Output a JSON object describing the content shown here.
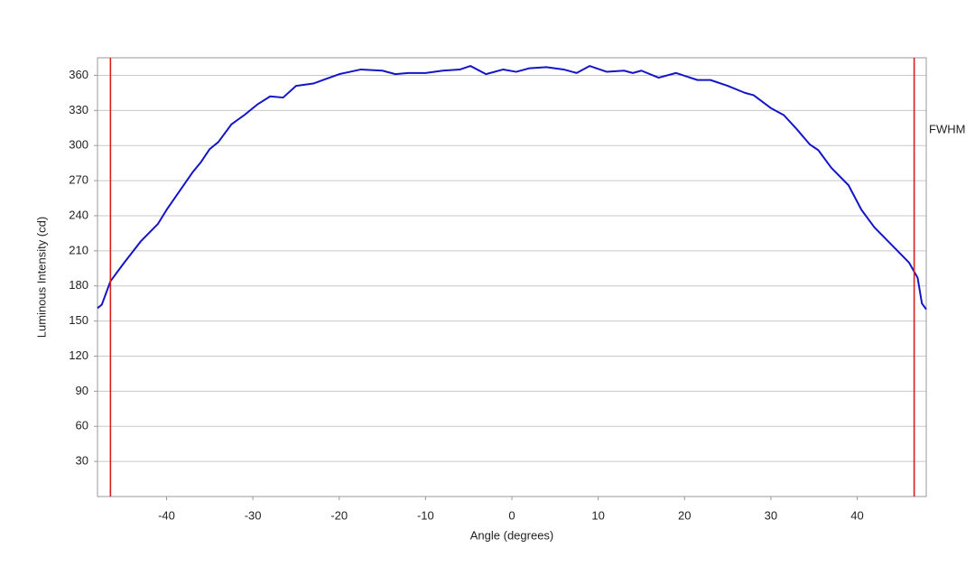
{
  "chart_data": {
    "type": "line",
    "x_label": "Angle (degrees)",
    "y_label": "Luminous Intensity (cd)",
    "x": [
      -48,
      -47.5,
      -46.5,
      -45,
      -43,
      -41,
      -40,
      -37,
      -36,
      -35,
      -34,
      -32.5,
      -31,
      -29.5,
      -28,
      -26.5,
      -25,
      -23,
      -21.5,
      -20,
      -17.5,
      -15,
      -13.5,
      -12,
      -10,
      -8,
      -6,
      -4.8,
      -3,
      -1,
      0.5,
      2,
      4,
      6,
      7.5,
      9,
      11,
      13,
      14,
      15,
      17,
      19,
      21.5,
      23,
      25,
      27,
      28,
      30,
      31.5,
      33,
      34.5,
      35.5,
      37,
      39,
      40.5,
      42,
      44,
      46,
      47,
      47.5,
      48
    ],
    "values": [
      161,
      164,
      184,
      199,
      218,
      233,
      245,
      277,
      286,
      297,
      303,
      318,
      326,
      335,
      342,
      341,
      351,
      353,
      357,
      361,
      365,
      364,
      361,
      362,
      362,
      364,
      365,
      368,
      361,
      365,
      363,
      366,
      367,
      365,
      362,
      368,
      363,
      364,
      362,
      364,
      358,
      362,
      356,
      356,
      351,
      345,
      343,
      332,
      326,
      314,
      301,
      296,
      281,
      266,
      245,
      230,
      215,
      200,
      187,
      165,
      160
    ],
    "color": "#1414c8",
    "xlim": [
      -48,
      48
    ],
    "xticks": [
      -40,
      -30,
      -20,
      -10,
      0,
      10,
      20,
      30,
      40
    ],
    "ylim": [
      0,
      375
    ],
    "yticks": [
      30,
      60,
      90,
      120,
      150,
      180,
      210,
      240,
      270,
      300,
      330,
      360
    ],
    "grid": true,
    "markers": {
      "label": "FWHM",
      "x": [
        -46.5,
        46.6
      ],
      "color": "#d42020"
    }
  }
}
